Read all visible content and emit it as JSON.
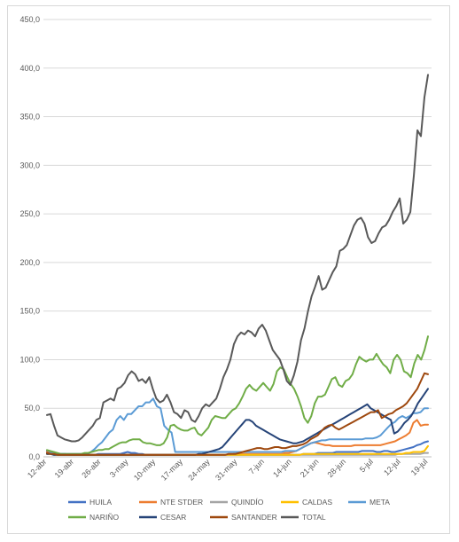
{
  "chart_data": {
    "type": "line",
    "title": "",
    "xlabel": "",
    "ylabel": "",
    "ylim": [
      0,
      450
    ],
    "yticks": [
      0,
      50,
      100,
      150,
      200,
      250,
      300,
      350,
      400,
      450
    ],
    "ytick_labels": [
      "0,0",
      "50,0",
      "100,0",
      "150,0",
      "200,0",
      "250,0",
      "300,0",
      "350,0",
      "400,0",
      "450,0"
    ],
    "xtick_labels": [
      "12-abr",
      "19-abr",
      "26-abr",
      "3-may",
      "10-may",
      "17-may",
      "24-may",
      "31-may",
      "7-jun",
      "14-jun",
      "21-jun",
      "28-jun",
      "5-jul",
      "12-jul",
      "19-jul"
    ],
    "grid": "horizontal",
    "legend_position": "bottom",
    "x_start": "12-abr",
    "x_end": "20-jul",
    "series": [
      {
        "name": "HUILA",
        "color": "#4472c4",
        "values": [
          6,
          5,
          4,
          3,
          3,
          3,
          2,
          2,
          2,
          2,
          2,
          2,
          2,
          2,
          3,
          3,
          3,
          3,
          3,
          3,
          3,
          4,
          5,
          4,
          4,
          3,
          3,
          2,
          2,
          2,
          2,
          2,
          2,
          2,
          2,
          2,
          2,
          2,
          2,
          2,
          2,
          2,
          2,
          2,
          2,
          2,
          2,
          2,
          2,
          2,
          2,
          2,
          2,
          2,
          2,
          2,
          2,
          2,
          2,
          2,
          2,
          2,
          2,
          2,
          2,
          2,
          2,
          2,
          2,
          2,
          3,
          3,
          3,
          3,
          4,
          4,
          4,
          4,
          4,
          5,
          5,
          5,
          5,
          5,
          5,
          5,
          6,
          6,
          6,
          6,
          5,
          5,
          6,
          6,
          5,
          5,
          6,
          7,
          8,
          9,
          10,
          12,
          13,
          15,
          16
        ]
      },
      {
        "name": "NTE STDER",
        "color": "#ed7d31",
        "values": [
          5,
          4,
          3,
          2,
          2,
          2,
          2,
          2,
          2,
          2,
          2,
          2,
          2,
          2,
          2,
          2,
          2,
          2,
          2,
          2,
          2,
          2,
          2,
          2,
          2,
          2,
          2,
          2,
          2,
          2,
          2,
          2,
          2,
          2,
          2,
          2,
          2,
          2,
          2,
          2,
          2,
          2,
          2,
          2,
          2,
          2,
          2,
          2,
          2,
          2,
          2,
          3,
          3,
          3,
          3,
          3,
          3,
          3,
          3,
          3,
          3,
          3,
          3,
          3,
          3,
          4,
          4,
          5,
          6,
          8,
          10,
          12,
          14,
          15,
          14,
          13,
          12,
          12,
          11,
          11,
          11,
          11,
          11,
          11,
          12,
          12,
          12,
          12,
          12,
          12,
          12,
          12,
          13,
          14,
          15,
          16,
          18,
          20,
          22,
          25,
          35,
          38,
          32,
          33,
          33
        ]
      },
      {
        "name": "QUINDÍO",
        "color": "#a5a5a5",
        "values": [
          3,
          3,
          2,
          2,
          2,
          2,
          2,
          2,
          2,
          2,
          2,
          2,
          2,
          2,
          2,
          2,
          2,
          2,
          2,
          2,
          2,
          2,
          2,
          2,
          2,
          2,
          2,
          2,
          2,
          2,
          2,
          2,
          2,
          2,
          2,
          2,
          2,
          2,
          2,
          2,
          2,
          2,
          2,
          2,
          2,
          2,
          2,
          2,
          2,
          2,
          2,
          2,
          2,
          2,
          2,
          2,
          2,
          2,
          2,
          2,
          2,
          2,
          2,
          2,
          2,
          2,
          2,
          2,
          2,
          2,
          2,
          2,
          2,
          2,
          2,
          2,
          2,
          2,
          2,
          2,
          2,
          2,
          2,
          2,
          2,
          2,
          2,
          2,
          2,
          2,
          2,
          2,
          2,
          2,
          2,
          2,
          3,
          3,
          3,
          3,
          3,
          3,
          3,
          4,
          4
        ]
      },
      {
        "name": "CALDAS",
        "color": "#ffc000",
        "values": [
          3,
          3,
          2,
          2,
          2,
          2,
          2,
          2,
          2,
          2,
          2,
          2,
          2,
          2,
          2,
          2,
          2,
          2,
          2,
          2,
          2,
          2,
          2,
          2,
          2,
          2,
          2,
          2,
          2,
          2,
          2,
          2,
          2,
          2,
          2,
          2,
          2,
          2,
          2,
          2,
          2,
          2,
          2,
          2,
          2,
          2,
          2,
          2,
          2,
          2,
          2,
          2,
          2,
          2,
          2,
          2,
          2,
          2,
          2,
          2,
          2,
          2,
          2,
          2,
          2,
          2,
          2,
          2,
          2,
          2,
          3,
          3,
          3,
          3,
          3,
          3,
          3,
          3,
          3,
          3,
          3,
          3,
          3,
          3,
          3,
          3,
          3,
          3,
          3,
          3,
          3,
          3,
          3,
          3,
          3,
          3,
          3,
          3,
          4,
          4,
          5,
          5,
          5,
          6,
          11
        ]
      },
      {
        "name": "META",
        "color": "#5b9bd5",
        "values": [
          4,
          4,
          3,
          3,
          3,
          3,
          3,
          3,
          3,
          3,
          3,
          3,
          5,
          8,
          12,
          15,
          20,
          25,
          28,
          38,
          42,
          38,
          44,
          44,
          48,
          52,
          52,
          56,
          56,
          60,
          52,
          50,
          32,
          28,
          25,
          5,
          5,
          5,
          5,
          5,
          5,
          5,
          5,
          5,
          5,
          5,
          5,
          5,
          5,
          5,
          5,
          5,
          5,
          5,
          5,
          5,
          5,
          5,
          5,
          5,
          5,
          5,
          5,
          5,
          5,
          6,
          6,
          6,
          6,
          8,
          10,
          12,
          14,
          15,
          16,
          17,
          17,
          18,
          18,
          18,
          18,
          18,
          18,
          18,
          18,
          18,
          18,
          19,
          19,
          19,
          20,
          22,
          26,
          30,
          34,
          36,
          40,
          42,
          40,
          42,
          45,
          45,
          46,
          50,
          50
        ]
      },
      {
        "name": "NARIÑO",
        "color": "#70ad47",
        "values": [
          7,
          6,
          5,
          4,
          3,
          3,
          3,
          3,
          3,
          3,
          3,
          4,
          4,
          5,
          6,
          7,
          7,
          8,
          8,
          10,
          12,
          14,
          15,
          15,
          17,
          18,
          18,
          18,
          15,
          14,
          14,
          13,
          12,
          12,
          14,
          20,
          32,
          33,
          30,
          28,
          27,
          27,
          29,
          30,
          24,
          22,
          26,
          30,
          38,
          42,
          41,
          40,
          40,
          44,
          48,
          50,
          55,
          62,
          70,
          74,
          70,
          68,
          72,
          76,
          72,
          68,
          75,
          88,
          92,
          90,
          82,
          75,
          70,
          62,
          52,
          40,
          35,
          42,
          55,
          62,
          62,
          64,
          72,
          80,
          82,
          74,
          72,
          78,
          80,
          85,
          95,
          103,
          100,
          98,
          100,
          100,
          106,
          100,
          95,
          92,
          86,
          100,
          105,
          100,
          88,
          86,
          82,
          96,
          105,
          100,
          110,
          124
        ]
      },
      {
        "name": "CESAR",
        "color": "#264478",
        "values": [
          3,
          3,
          2,
          2,
          2,
          2,
          2,
          2,
          2,
          2,
          2,
          2,
          2,
          2,
          2,
          2,
          2,
          2,
          2,
          2,
          2,
          2,
          2,
          2,
          2,
          2,
          2,
          2,
          2,
          2,
          2,
          2,
          2,
          2,
          2,
          2,
          2,
          2,
          2,
          2,
          2,
          2,
          2,
          2,
          2,
          3,
          3,
          4,
          5,
          6,
          7,
          8,
          10,
          14,
          18,
          22,
          26,
          30,
          34,
          38,
          38,
          36,
          32,
          30,
          28,
          26,
          24,
          22,
          20,
          18,
          17,
          16,
          15,
          14,
          14,
          15,
          16,
          18,
          20,
          22,
          24,
          26,
          28,
          30,
          32,
          34,
          36,
          38,
          40,
          42,
          44,
          46,
          48,
          50,
          52,
          54,
          50,
          48,
          46,
          44,
          42,
          40,
          38,
          24,
          26,
          30,
          35,
          38,
          42,
          48,
          55,
          60,
          65,
          70
        ]
      },
      {
        "name": "SANTANDER",
        "color": "#9e480e",
        "values": [
          4,
          3,
          3,
          2,
          2,
          2,
          2,
          2,
          2,
          2,
          2,
          2,
          2,
          2,
          2,
          2,
          2,
          2,
          2,
          2,
          2,
          2,
          2,
          2,
          2,
          2,
          2,
          2,
          2,
          2,
          2,
          2,
          2,
          2,
          2,
          2,
          2,
          2,
          2,
          2,
          2,
          2,
          2,
          2,
          2,
          2,
          2,
          2,
          2,
          2,
          2,
          3,
          3,
          3,
          4,
          5,
          6,
          7,
          8,
          9,
          9,
          8,
          8,
          9,
          10,
          10,
          9,
          9,
          10,
          11,
          11,
          12,
          13,
          15,
          18,
          20,
          22,
          26,
          30,
          32,
          33,
          30,
          28,
          30,
          32,
          34,
          36,
          38,
          40,
          42,
          44,
          46,
          46,
          48,
          40,
          42,
          44,
          45,
          48,
          50,
          52,
          55,
          60,
          65,
          70,
          78,
          86,
          85
        ]
      },
      {
        "name": "TOTAL",
        "color": "#595959",
        "values": [
          43,
          44,
          32,
          22,
          20,
          18,
          17,
          16,
          16,
          17,
          20,
          24,
          28,
          32,
          38,
          40,
          56,
          58,
          60,
          58,
          70,
          72,
          76,
          84,
          88,
          85,
          78,
          80,
          76,
          82,
          70,
          60,
          56,
          58,
          64,
          56,
          46,
          44,
          40,
          48,
          46,
          38,
          36,
          42,
          50,
          54,
          52,
          56,
          60,
          70,
          82,
          90,
          100,
          116,
          124,
          128,
          126,
          130,
          128,
          124,
          132,
          136,
          130,
          120,
          110,
          105,
          100,
          90,
          78,
          74,
          84,
          98,
          120,
          132,
          150,
          165,
          175,
          186,
          172,
          174,
          182,
          190,
          196,
          212,
          214,
          218,
          228,
          238,
          244,
          246,
          240,
          226,
          220,
          222,
          230,
          236,
          238,
          244,
          252,
          258,
          266,
          240,
          244,
          252,
          290,
          336,
          330,
          370,
          393
        ]
      }
    ]
  }
}
